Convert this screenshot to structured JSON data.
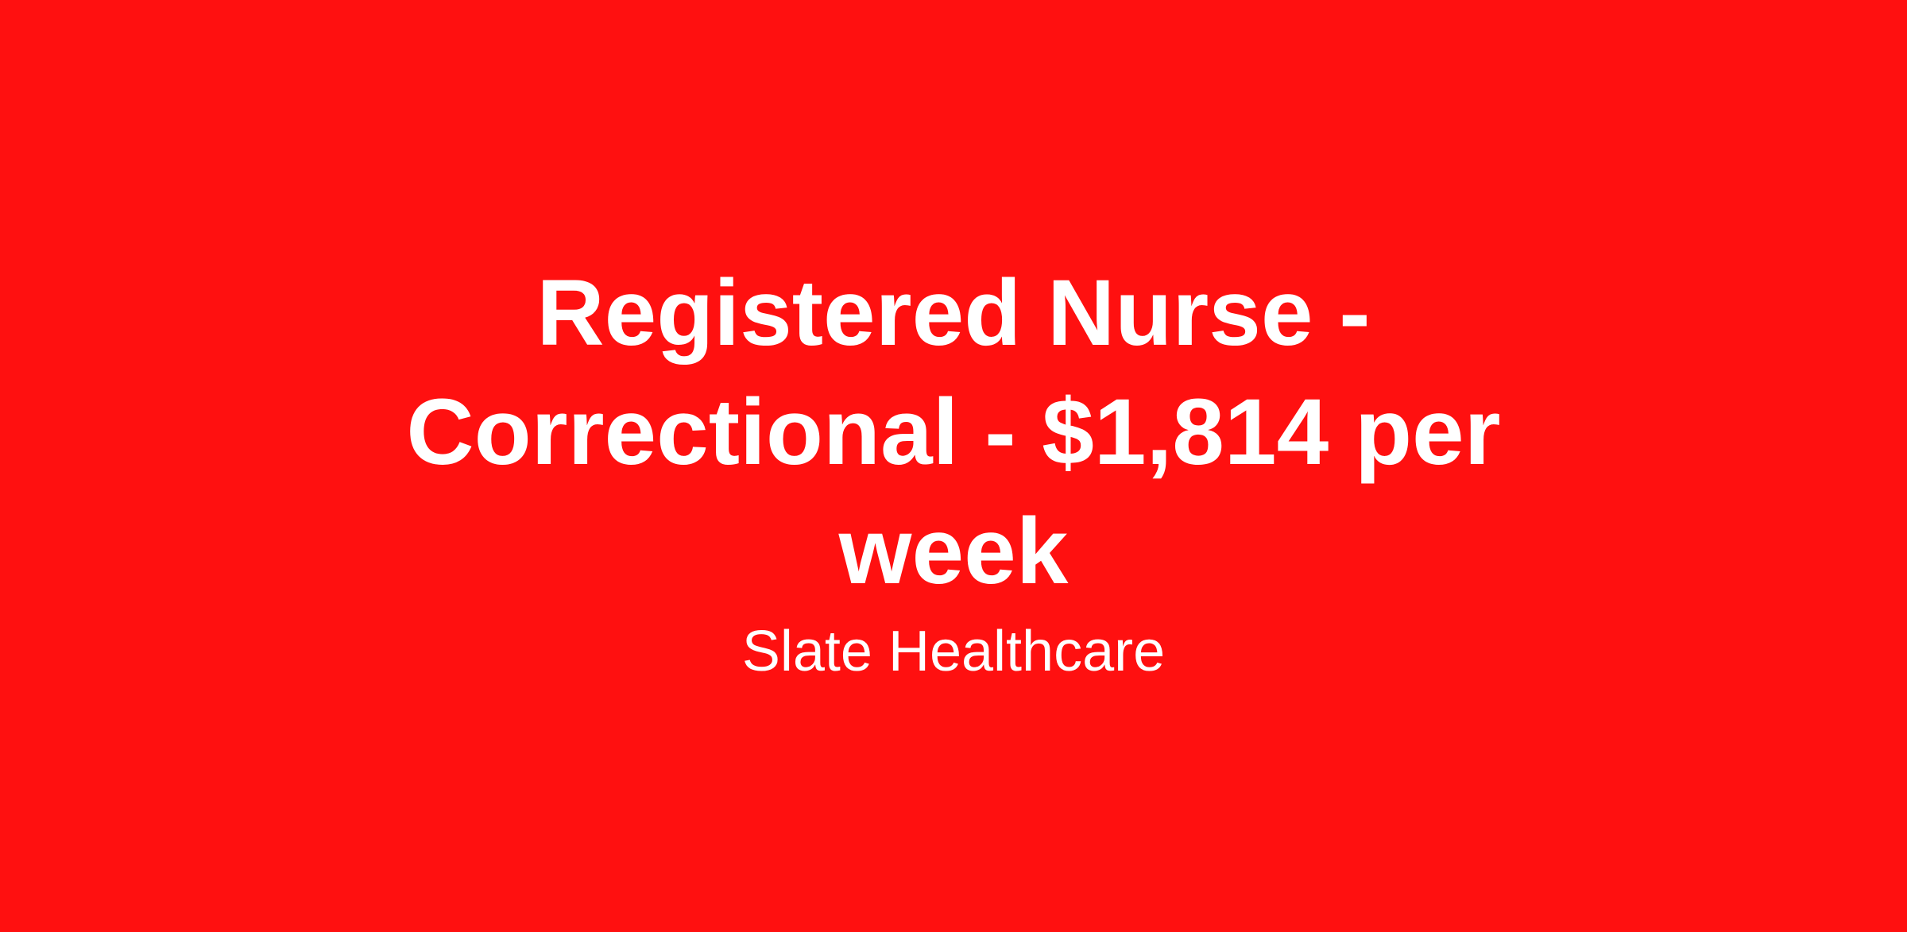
{
  "job": {
    "title": "Registered Nurse - Correctional - $1,814 per week",
    "company": "Slate Healthcare"
  },
  "colors": {
    "background": "#FF1010",
    "text": "#FFFFFF"
  }
}
